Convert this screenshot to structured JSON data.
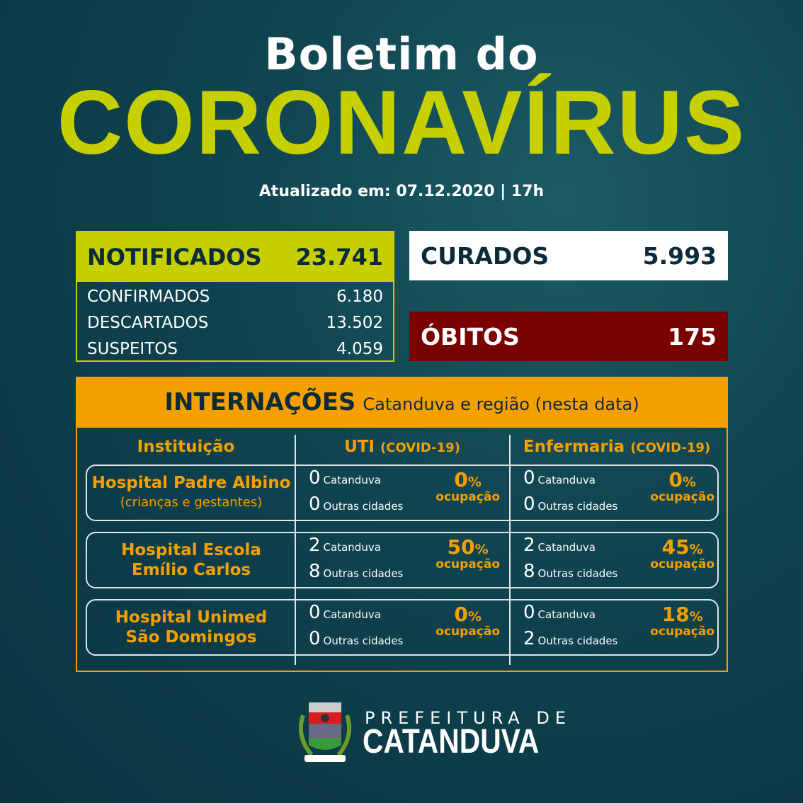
{
  "header": {
    "line1": "Boletim do",
    "line2": "CORONAVÍRUS",
    "updated": "Atualizado em: 07.12.2020  |  17h"
  },
  "notificados": {
    "label": "NOTIFICADOS",
    "value": "23.741",
    "rows": [
      {
        "label": "CONFIRMADOS",
        "value": "6.180"
      },
      {
        "label": "DESCARTADOS",
        "value": "13.502"
      },
      {
        "label": "SUSPEITOS",
        "value": "4.059"
      }
    ]
  },
  "curados": {
    "label": "CURADOS",
    "value": "5.993"
  },
  "obitos": {
    "label": "ÓBITOS",
    "value": "175"
  },
  "internacoes": {
    "title": "INTERNAÇÕES",
    "subtitle": "Catanduva e região (nesta data)",
    "col_instituicao": "Instituição",
    "col_uti": "UTI",
    "col_enf": "Enfermaria",
    "col_suffix": "(COVID-19)",
    "local_label": "Catanduva",
    "other_label": "Outras cidades",
    "occupancy_label": "ocupação",
    "pct_sign": "%",
    "rows": [
      {
        "name": "Hospital Padre Albino",
        "sub": "(crianças e gestantes)",
        "uti": {
          "catanduva": "0",
          "outras": "0",
          "pct": "0"
        },
        "enf": {
          "catanduva": "0",
          "outras": "0",
          "pct": "0"
        }
      },
      {
        "name": "Hospital Escola",
        "sub2": "Emílio Carlos",
        "uti": {
          "catanduva": "2",
          "outras": "8",
          "pct": "50"
        },
        "enf": {
          "catanduva": "2",
          "outras": "8",
          "pct": "45"
        }
      },
      {
        "name": "Hospital Unimed",
        "sub2": "São Domingos",
        "uti": {
          "catanduva": "0",
          "outras": "0",
          "pct": "0"
        },
        "enf": {
          "catanduva": "0",
          "outras": "2",
          "pct": "18"
        }
      }
    ]
  },
  "footer": {
    "line1": "PREFEITURA DE",
    "line2": "CATANDUVA",
    "crest_text": "CATANDUVA"
  },
  "colors": {
    "background": "#0f4450",
    "lime": "#c6cf00",
    "orange": "#f5a000",
    "dark_red": "#7a0000",
    "navy": "#0b2a3a"
  }
}
